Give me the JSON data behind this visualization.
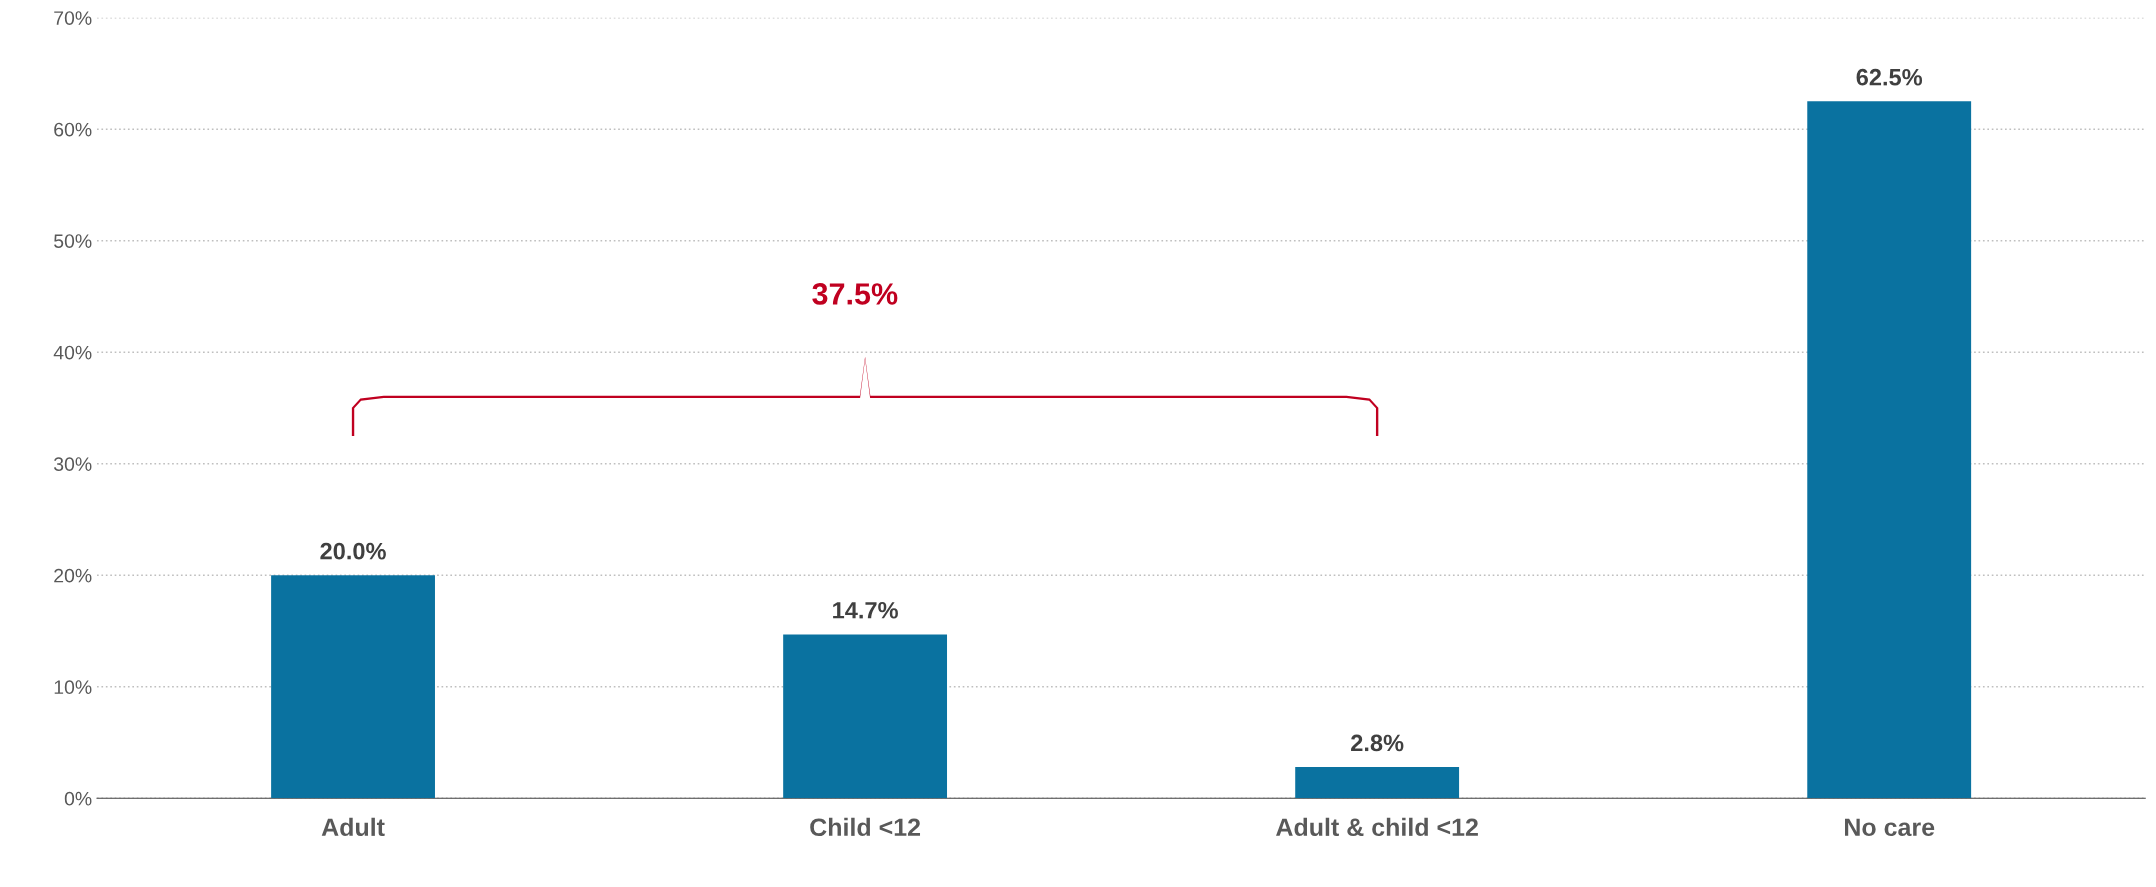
{
  "chart_data": {
    "type": "bar",
    "categories": [
      "Adult",
      "Child <12",
      "Adult & child <12",
      "No care"
    ],
    "values": [
      20.0,
      14.7,
      2.8,
      62.5
    ],
    "color": "#0a72a0",
    "value_labels": [
      "20.0%",
      "14.7%",
      "2.8%",
      "62.5%"
    ],
    "ylim": [
      0,
      70
    ],
    "yticks": [
      {
        "value": 0,
        "label": "0%"
      },
      {
        "value": 10,
        "label": "10%"
      },
      {
        "value": 20,
        "label": "20%"
      },
      {
        "value": 30,
        "label": "30%"
      },
      {
        "value": 40,
        "label": "40%"
      },
      {
        "value": 50,
        "label": "50%"
      },
      {
        "value": 60,
        "label": "60%"
      },
      {
        "value": 70,
        "label": "70%"
      }
    ],
    "grid": "y",
    "annotations": [
      "37.5%"
    ]
  }
}
